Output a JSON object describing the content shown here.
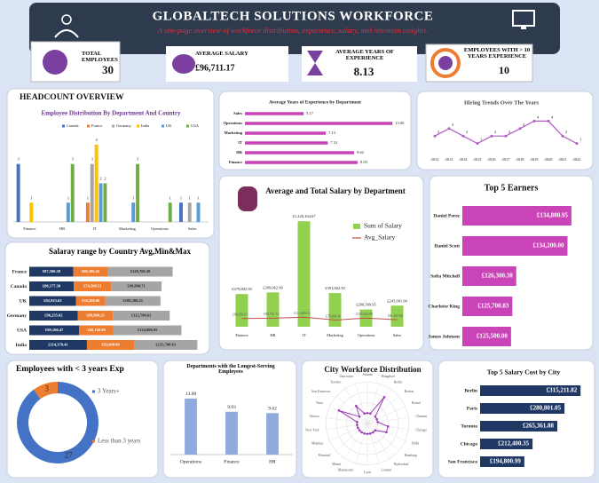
{
  "header": {
    "title": "GLOBALTECH SOLUTIONS WORKFORCE",
    "subtitle": "A one-page overview of workforce distribution, experience, salary, and retention insights."
  },
  "kpis": [
    {
      "label": "TOTAL EMPLOYEES",
      "value": 30
    },
    {
      "label": "AVERAGE SALARY",
      "value": "£96,711.17"
    },
    {
      "label": "AVERAGE YEARS OF EXPERIENCE",
      "value": 8.13
    },
    {
      "label": "EMPLOYEES WITH > 10 YEARS EXPERIENCE",
      "value": 10
    }
  ],
  "chart_data": [
    {
      "type": "bar",
      "panel_title": "HEADCOUNT OVERVIEW",
      "title": "Employee Distribution By Department And Country",
      "categories": [
        "Finance",
        "HR",
        "IT",
        "Marketing",
        "Operations",
        "Sales"
      ],
      "series": [
        {
          "name": "Canada",
          "color": "#4472c4",
          "values": [
            3,
            null,
            null,
            null,
            null,
            1
          ]
        },
        {
          "name": "France",
          "color": "#ed7d31",
          "values": [
            null,
            null,
            1,
            null,
            null,
            null
          ]
        },
        {
          "name": "Germany",
          "color": "#a5a5a5",
          "values": [
            null,
            null,
            3,
            null,
            null,
            1
          ]
        },
        {
          "name": "India",
          "color": "#ffc000",
          "values": [
            1,
            null,
            4,
            null,
            null,
            null
          ]
        },
        {
          "name": "UK",
          "color": "#5b9bd5",
          "values": [
            null,
            1,
            2,
            1,
            null,
            1
          ]
        },
        {
          "name": "USA",
          "color": "#70ad47",
          "values": [
            null,
            3,
            2,
            3,
            1,
            null
          ]
        }
      ],
      "ylim": [
        0,
        4.5
      ]
    },
    {
      "type": "bar",
      "orientation": "horizontal",
      "title": "Average Years of Experience by Department",
      "categories": [
        "Sales",
        "Operations",
        "Marketing",
        "IT",
        "HR",
        "Finance"
      ],
      "values": [
        5.17,
        13,
        7.13,
        7.31,
        9.62,
        9.93
      ],
      "value_labels": [
        "5.17",
        "13.00",
        "7.13",
        "7.31",
        "9.62",
        "9.93"
      ],
      "color": "#c944b6",
      "xlim": [
        0,
        14
      ]
    },
    {
      "type": "line",
      "title": "Hiring Trends Over The Years",
      "categories": [
        "2012",
        "2013",
        "2014",
        "2015",
        "2016",
        "2017",
        "2018",
        "2019",
        "2020",
        "2021",
        "2022"
      ],
      "values": [
        2,
        3,
        2,
        1,
        2,
        2,
        3,
        4,
        4,
        2,
        1
      ],
      "color": "#b05cc4",
      "ylim": [
        0,
        5
      ]
    },
    {
      "type": "combo",
      "title": "Average and Total Salary by Department",
      "categories": [
        "Finance",
        "HR",
        "IT",
        "Marketing",
        "Operations",
        "Sales"
      ],
      "series": [
        {
          "name": "Sum of Salary",
          "color": "#92d050",
          "values": [
            379802.5,
            399062.96,
            1226164.67,
            391002.5,
            200509.95,
            245001
          ],
          "value_labels": [
            "£379,802.50",
            "£399,062.96",
            "£1,226,164.67",
            "£391,002.50",
            "£200,509.95",
            "£245,001.00"
          ]
        },
        {
          "name": "Avg_Salary",
          "color": "#c0504d",
          "values": [
            94950.63,
            99765.74,
            111469.52,
            78200.5,
            100254.98,
            81667
          ],
          "value_labels": [
            "£94,950.63",
            "£99,765.74",
            "£111,469.52",
            "£78,200.50",
            "£100,254.98",
            "£81,667.00"
          ]
        }
      ],
      "ylim": [
        0,
        1300000
      ]
    },
    {
      "type": "bar",
      "orientation": "horizontal",
      "title": "Top 5  Earners",
      "categories": [
        "Daniel Perez",
        "Daniel Scott",
        "Sofia Mitchell",
        "Charlotte King",
        "James Johnson"
      ],
      "values": [
        134800.95,
        134200,
        126300.3,
        125700.83,
        125500
      ],
      "value_labels": [
        "£134,800.95",
        "£134,200.00",
        "£126,300.30",
        "£125,700.83",
        "£125,500.00"
      ],
      "color": "#c944b6",
      "xlim": [
        118000,
        137000
      ]
    },
    {
      "type": "bar",
      "orientation": "horizontal",
      "stacked": true,
      "title": "Salaray range by Country Avg,Min&Max",
      "categories": [
        "France",
        "Canada",
        "UK",
        "Germany",
        "USA",
        "India"
      ],
      "series": [
        {
          "color": "#1f3864",
          "values": [
            87500.38,
            88177.3,
            92923.63,
            96255.02,
            99100.47,
            114370.41
          ],
          "value_labels": [
            "£87,500.38",
            "£88,177.30",
            "£92,923.63",
            "£96,255.02",
            "£99,100.47",
            "£114,370.41"
          ]
        },
        {
          "color": "#ed7d31",
          "values": [
            68300.45,
            74500.51,
            58200,
            69800.23,
            68100.99,
            93600
          ],
          "value_labels": [
            "£68,300.45",
            "£74,500.51",
            "£58,200.00",
            "£69,800.23",
            "£68,100.99",
            "£93,600.00"
          ]
        },
        {
          "color": "#a5a5a5",
          "values": [
            128700.3,
            99800.71,
            109300.21,
            112700.63,
            134800.95,
            125700.83
          ],
          "value_labels": [
            "£128,700.30",
            "£99,800.71",
            "£109,300.21",
            "£112,700.63",
            "£134,800.95",
            "£125,700.83"
          ]
        }
      ],
      "xlim": [
        0,
        340000
      ]
    },
    {
      "type": "donut",
      "title": "Employees with < 3 years Exp",
      "categories": [
        "3 Years+",
        "Less than 3 years"
      ],
      "values": [
        27,
        3
      ],
      "colors": [
        "#4472c4",
        "#ed7d31"
      ]
    },
    {
      "type": "bar",
      "title": "Departments with the Longest-Serving Employees",
      "categories": [
        "Operations",
        "Finance",
        "HR"
      ],
      "values": [
        13,
        9.93,
        9.62
      ],
      "value_labels": [
        "13.00",
        "9.93",
        "9.62"
      ],
      "color": "#8faadc",
      "ylim": [
        0,
        14
      ]
    },
    {
      "type": "radar",
      "title": "City Workforce Distribution",
      "categories": [
        "Atlanta",
        "Bangalore",
        "Berlin",
        "Boston",
        "Bristol",
        "Chennai",
        "Chicago",
        "Delhi",
        "Hamburg",
        "Hyderabad",
        "London",
        "Lyon",
        "Manchester",
        "Miami",
        "Montreal",
        "Mumbai",
        "New York",
        "Ottawa",
        "Paris",
        "San Francisco",
        "Toronto",
        "Vancouver"
      ],
      "values": [
        1,
        1,
        3,
        1,
        1,
        1,
        2,
        2,
        1,
        1,
        1,
        1,
        1,
        1,
        1,
        1,
        1,
        1,
        3,
        1,
        2,
        1
      ],
      "color": "#9b3fb5",
      "rlim": [
        0,
        4
      ],
      "rticks": [
        1,
        2,
        3,
        4
      ]
    },
    {
      "type": "bar",
      "orientation": "horizontal",
      "title": "Top 5 Salary Cost by City",
      "categories": [
        "Berlin",
        "Paris",
        "Toronto",
        "Chicago",
        "San Francisco"
      ],
      "values": [
        315211.82,
        280801.05,
        265361.88,
        212400.35,
        194800.99
      ],
      "value_labels": [
        "£315,211.82",
        "£280,801.05",
        "£265,361.88",
        "£212,400.35",
        "£194,800.99"
      ],
      "color": "#1f3864",
      "xlim": [
        100000,
        330000
      ]
    }
  ]
}
